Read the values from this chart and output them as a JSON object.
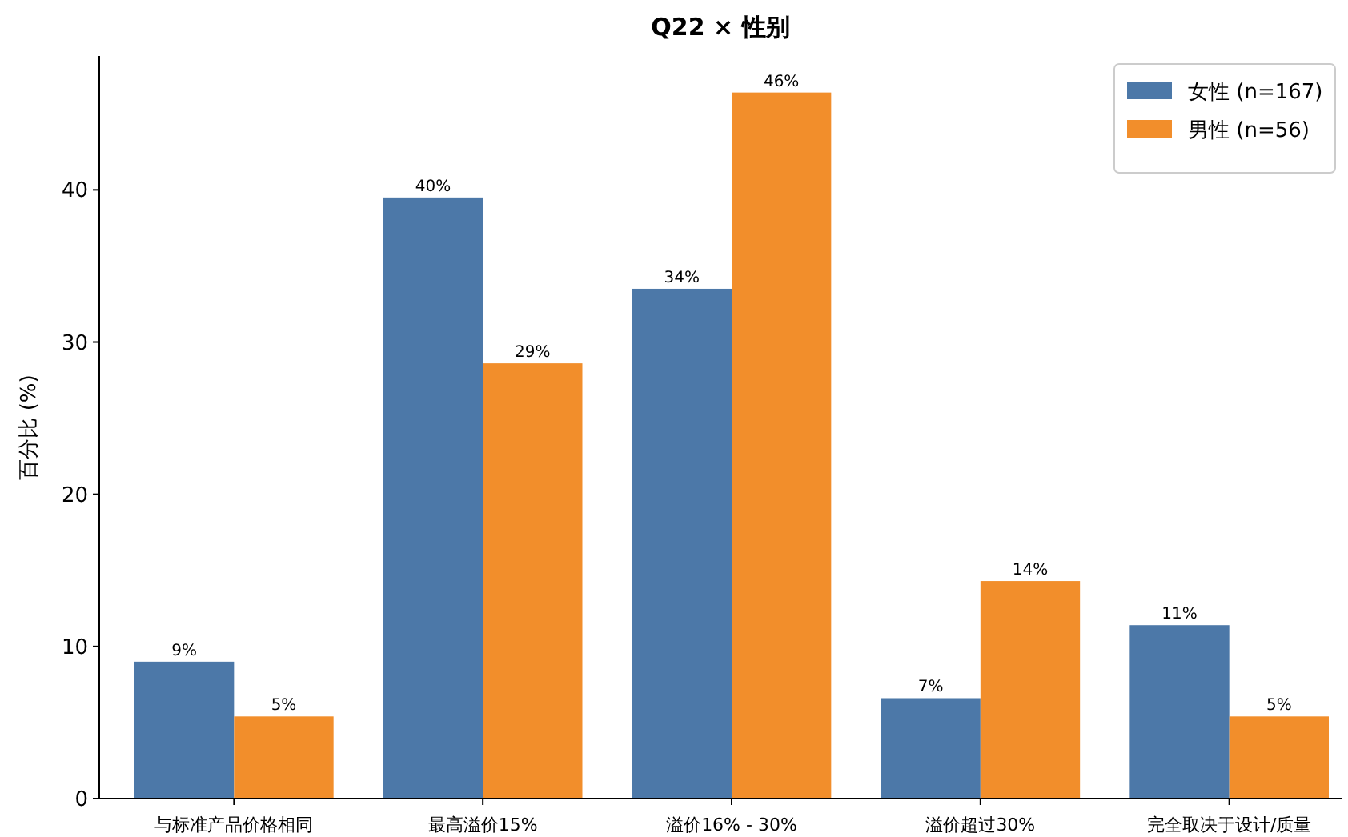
{
  "chart_data": {
    "type": "bar",
    "title": "Q22 × 性别",
    "ylabel": "百分比 (%)",
    "categories": [
      "与标准产品价格相同",
      "最高溢价15%",
      "溢价16% - 30%",
      "溢价超过30%",
      "完全取决于设计/质量"
    ],
    "series": [
      {
        "name": "女性 (n=167)",
        "color": "#4c78a8",
        "values": [
          9.0,
          39.5,
          33.5,
          6.6,
          11.4
        ],
        "value_labels": [
          "9%",
          "40%",
          "34%",
          "7%",
          "11%"
        ]
      },
      {
        "name": "男性 (n=56)",
        "color": "#f28e2b",
        "values": [
          5.4,
          28.6,
          46.4,
          14.3,
          5.4
        ],
        "value_labels": [
          "5%",
          "29%",
          "46%",
          "14%",
          "5%"
        ]
      }
    ],
    "ylim": [
      0,
      48.8
    ],
    "yticks": [
      0,
      10,
      20,
      30,
      40
    ],
    "grid": false,
    "legend": "top right"
  }
}
